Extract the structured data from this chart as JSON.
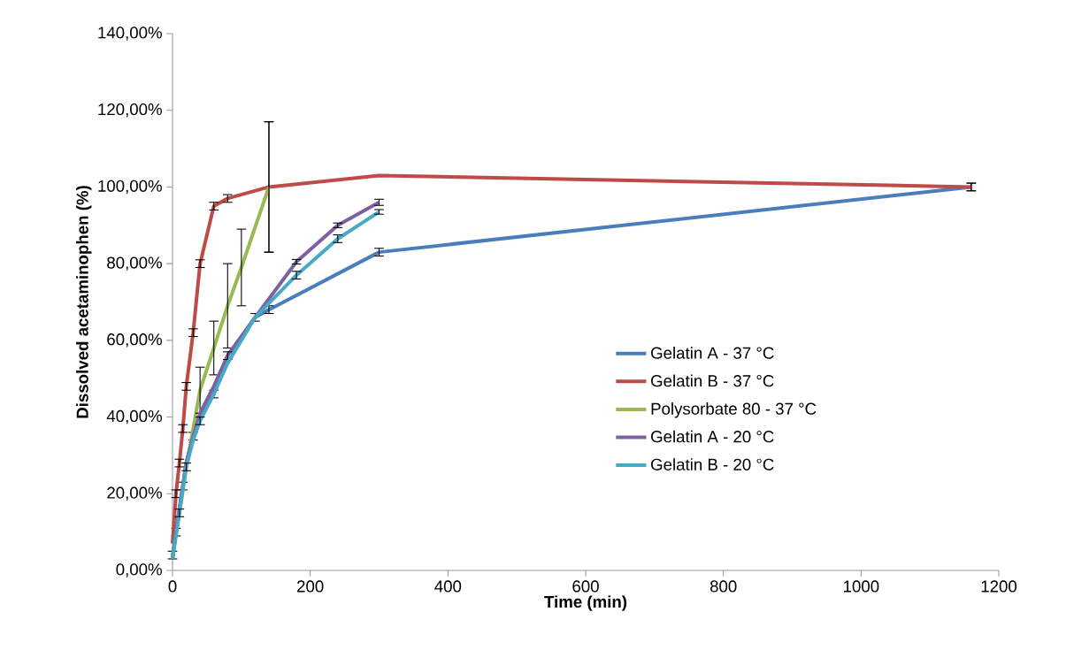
{
  "chart_data": {
    "type": "line",
    "xlabel": "Time (min)",
    "ylabel": "Dissolved acetaminophen (%)",
    "xlim": [
      0,
      1200
    ],
    "xticks": [
      0,
      200,
      400,
      600,
      800,
      1000,
      1200
    ],
    "ylim": [
      0,
      140
    ],
    "yticks": [
      {
        "value": 0,
        "label": "0,00%"
      },
      {
        "value": 20,
        "label": "20,00%"
      },
      {
        "value": 40,
        "label": "40,00%"
      },
      {
        "value": 60,
        "label": "60,00%"
      },
      {
        "value": 80,
        "label": "80,00%"
      },
      {
        "value": 100,
        "label": "100,00%"
      },
      {
        "value": 120,
        "label": "120,00%"
      },
      {
        "value": 140,
        "label": "140,00%"
      }
    ],
    "grid": false,
    "legend": "right",
    "marker": "none",
    "line_style": "solid",
    "series": [
      {
        "name": "Gelatin A - 37 °C",
        "color": "#4a7ebb",
        "x": [
          0,
          5,
          10,
          15,
          20,
          30,
          40,
          60,
          80,
          120,
          140,
          300,
          1160
        ],
        "values": [
          3,
          10,
          16,
          22,
          28,
          35,
          40,
          46,
          56,
          66,
          68,
          83,
          100
        ],
        "errors": [
          null,
          1,
          null,
          1,
          null,
          1,
          null,
          1,
          null,
          1,
          1,
          1,
          1
        ]
      },
      {
        "name": "Gelatin B - 37 °C",
        "color": "#be4b48",
        "x": [
          0,
          5,
          10,
          15,
          20,
          30,
          40,
          60,
          80,
          140,
          300,
          1160
        ],
        "values": [
          7,
          20,
          28,
          37,
          48,
          62,
          80,
          95,
          97,
          100,
          103,
          100
        ],
        "errors": [
          null,
          1,
          1,
          1,
          1,
          1,
          1,
          1,
          1,
          17,
          null,
          1
        ]
      },
      {
        "name": "Polysorbate 80 - 37 °C",
        "color": "#98b954",
        "x": [
          0,
          10,
          20,
          30,
          40,
          60,
          80,
          100,
          140
        ],
        "values": [
          4,
          15,
          27,
          37,
          47,
          58,
          69,
          79,
          100
        ],
        "errors": [
          1,
          null,
          null,
          null,
          6,
          7,
          11,
          10,
          17
        ]
      },
      {
        "name": "Gelatin A - 20 °C",
        "color": "#7d60a0",
        "x": [
          0,
          5,
          10,
          15,
          20,
          30,
          40,
          60,
          80,
          120,
          180,
          240,
          300
        ],
        "values": [
          3,
          10,
          16,
          22,
          28,
          35,
          41,
          48,
          56,
          66,
          80.5,
          90,
          96
        ],
        "errors": [
          null,
          null,
          null,
          null,
          null,
          null,
          null,
          null,
          1,
          null,
          0.6,
          0.6,
          0.8
        ]
      },
      {
        "name": "Gelatin B - 20 °C",
        "color": "#46aac5",
        "x": [
          0,
          5,
          10,
          15,
          20,
          30,
          40,
          60,
          80,
          120,
          180,
          240,
          300
        ],
        "values": [
          3,
          9,
          15,
          21,
          27,
          34,
          39,
          46,
          54,
          66,
          77,
          86.5,
          93.5
        ],
        "errors": [
          null,
          null,
          1,
          null,
          1,
          null,
          1,
          null,
          null,
          null,
          1,
          1,
          0.6
        ]
      }
    ]
  }
}
